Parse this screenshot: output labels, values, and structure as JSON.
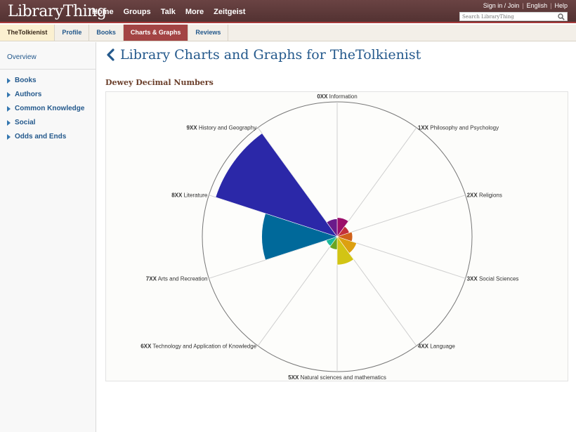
{
  "header": {
    "logo_text": "LibraryThing",
    "nav": [
      "Home",
      "Groups",
      "Talk",
      "More",
      "Zeitgeist"
    ],
    "utility": [
      "Sign in / Join",
      "English",
      "Help"
    ],
    "search_placeholder": "Search LibraryThing"
  },
  "tabs": [
    {
      "label": "TheTolkienist",
      "state": "first"
    },
    {
      "label": "Profile",
      "state": ""
    },
    {
      "label": "Books",
      "state": ""
    },
    {
      "label": "Charts & Graphs",
      "state": "active"
    },
    {
      "label": "Reviews",
      "state": ""
    }
  ],
  "sidebar": {
    "overview": "Overview",
    "items": [
      "Books",
      "Authors",
      "Common Knowledge",
      "Social",
      "Odds and Ends"
    ]
  },
  "page_title": "Library Charts and Graphs for TheTolkienist",
  "section_title": "Dewey Decimal Numbers",
  "colors": {
    "header_bg": "#5c3a3a",
    "active_tab": "#a34444",
    "link": "#24598c"
  },
  "chart_data": {
    "type": "polar-area",
    "title": "",
    "max_value": 1.0,
    "categories": [
      {
        "code": "0XX",
        "name": "Information",
        "value": 0.15,
        "color": "#9b0e6a"
      },
      {
        "code": "1XX",
        "name": "Philosophy and Psychology",
        "value": 0.1,
        "color": "#c4303a"
      },
      {
        "code": "2XX",
        "name": "Religions",
        "value": 0.12,
        "color": "#d0611a"
      },
      {
        "code": "3XX",
        "name": "Social Sciences",
        "value": 0.16,
        "color": "#dda010"
      },
      {
        "code": "4XX",
        "name": "Language",
        "value": 0.22,
        "color": "#d2c414"
      },
      {
        "code": "5XX",
        "name": "Natural sciences and mathematics",
        "value": 0.1,
        "color": "#6aa520"
      },
      {
        "code": "6XX",
        "name": "Technology and Application of Knowledge",
        "value": 0.09,
        "color": "#1ab89a"
      },
      {
        "code": "7XX",
        "name": "Arts and Recreation",
        "value": 0.59,
        "color": "#00699a"
      },
      {
        "code": "8XX",
        "name": "Literature",
        "value": 1.0,
        "color": "#2b28a8"
      },
      {
        "code": "9XX",
        "name": "History and Geography",
        "value": 0.14,
        "color": "#6a1a8a"
      }
    ]
  }
}
